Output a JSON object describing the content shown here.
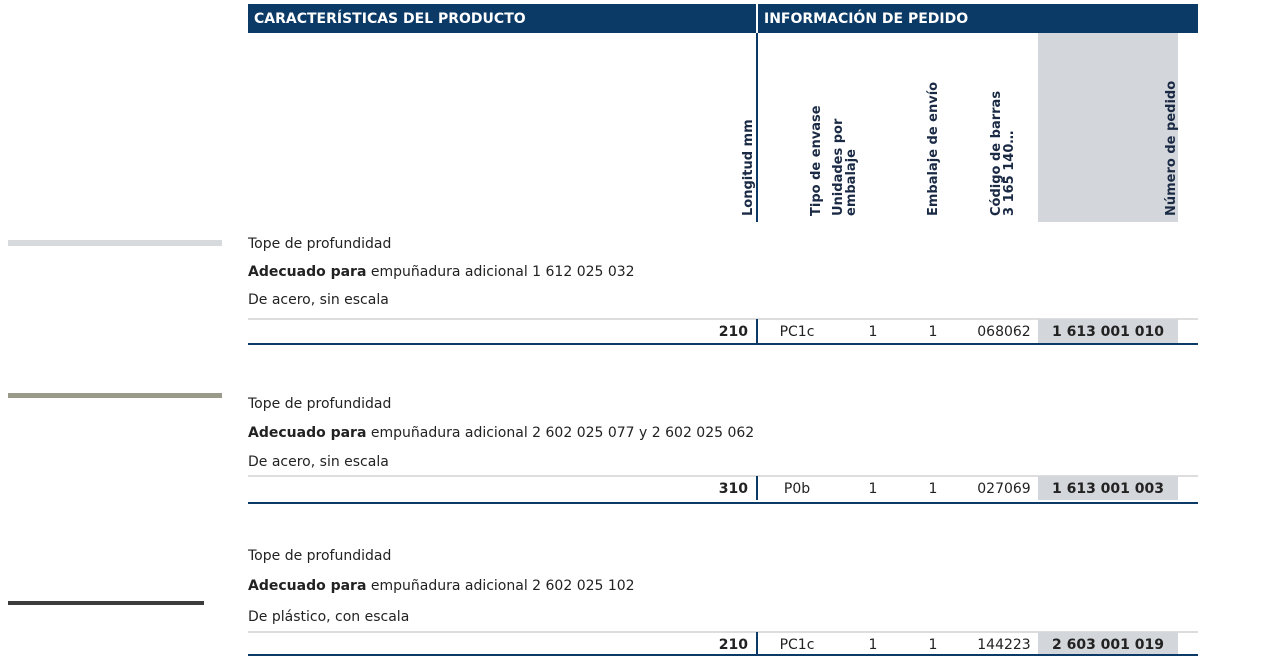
{
  "header": {
    "groups": [
      "CARACTERÍSTICAS DEL PRODUCTO",
      "INFORMACIÓN DE PEDIDO"
    ],
    "columns": [
      [
        "Longitud mm"
      ],
      [
        "Tipo de envase"
      ],
      [
        "Unidades por",
        "embalaje"
      ],
      [
        "Embalaje de envío"
      ],
      [
        "Código de barras",
        "3 165 140…"
      ],
      [
        "Número de pedido"
      ]
    ]
  },
  "products": [
    {
      "name": "Tope de profundidad",
      "suitable_label": "Adecuado para",
      "suitable_text": "empuñadura adicional 1 612 025 032",
      "material": "De acero, sin escala",
      "row": [
        "210",
        "PC1c",
        "1",
        "1",
        "068062",
        "1 613 001 010"
      ]
    },
    {
      "name": "Tope de profundidad",
      "suitable_label": "Adecuado para",
      "suitable_text": "empuñadura adicional 2 602 025 077 y 2 602 025 062",
      "material": "De acero, sin escala",
      "row": [
        "310",
        "P0b",
        "1",
        "1",
        "027069",
        "1 613 001 003"
      ]
    },
    {
      "name": "Tope de profundidad",
      "suitable_label": "Adecuado para",
      "suitable_text": "empuñadura adicional 2 602 025 102",
      "material": "De plástico, con escala",
      "row": [
        "210",
        "PC1c",
        "1",
        "1",
        "144223",
        "2 603 001 019"
      ]
    }
  ]
}
